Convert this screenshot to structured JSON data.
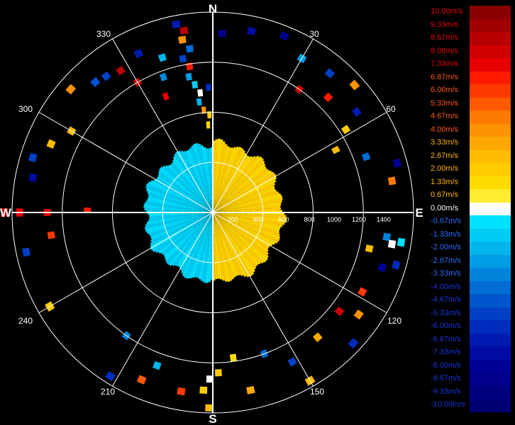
{
  "chart_data": {
    "type": "heatmap",
    "subtype": "polar radial velocity display",
    "cardinals": [
      "N",
      "E",
      "S",
      "W"
    ],
    "azimuth_labels": [
      "30",
      "60",
      "120",
      "150",
      "210",
      "240",
      "300",
      "330"
    ],
    "range_labels": [
      "200",
      "400",
      "600",
      "800",
      "1000",
      "1200",
      "1400"
    ],
    "rmax": 1600,
    "ring_step": 400,
    "spoke_step_deg": 30,
    "legend": {
      "placement": "right",
      "unit": "m/s",
      "entries": [
        {
          "label": "10.00m/s",
          "value": 10.0,
          "color": "#8a0000"
        },
        {
          "label": "9.33m/s",
          "value": 9.33,
          "color": "#a00000"
        },
        {
          "label": "8.67m/s",
          "value": 8.67,
          "color": "#b80000"
        },
        {
          "label": "8.00m/s",
          "value": 8.0,
          "color": "#d00000"
        },
        {
          "label": "7.33m/s",
          "value": 7.33,
          "color": "#e80000"
        },
        {
          "label": "6.87m/s",
          "value": 6.87,
          "color": "#ff1a00"
        },
        {
          "label": "6.00m/s",
          "value": 6.0,
          "color": "#ff3a00"
        },
        {
          "label": "5.33m/s",
          "value": 5.33,
          "color": "#ff5a00"
        },
        {
          "label": "4.67m/s",
          "value": 4.67,
          "color": "#ff7a00"
        },
        {
          "label": "4.00m/s",
          "value": 4.0,
          "color": "#ff9200"
        },
        {
          "label": "3.33m/s",
          "value": 3.33,
          "color": "#ffa800"
        },
        {
          "label": "2.67m/s",
          "value": 2.67,
          "color": "#ffbc00"
        },
        {
          "label": "2.00m/s",
          "value": 2.0,
          "color": "#ffcc00"
        },
        {
          "label": "1.33m/s",
          "value": 1.33,
          "color": "#ffdc00"
        },
        {
          "label": "0.67m/s",
          "value": 0.67,
          "color": "#ffec30"
        },
        {
          "label": "0.00m/s",
          "value": 0.0,
          "color": "#ffffff"
        },
        {
          "label": "-0.67m/s",
          "value": -0.67,
          "color": "#00e0ff"
        },
        {
          "label": "-1.33m/s",
          "value": -1.33,
          "color": "#00ccf4"
        },
        {
          "label": "-2.00m/s",
          "value": -2.0,
          "color": "#00b4ec"
        },
        {
          "label": "-2.67m/s",
          "value": -2.67,
          "color": "#009ce4"
        },
        {
          "label": "-3.33m/s",
          "value": -3.33,
          "color": "#0084dc"
        },
        {
          "label": "-4.00m/s",
          "value": -4.0,
          "color": "#006cd4"
        },
        {
          "label": "-4.67m/s",
          "value": -4.67,
          "color": "#0056cc"
        },
        {
          "label": "-5.33m/s",
          "value": -5.33,
          "color": "#0040c4"
        },
        {
          "label": "-6.00m/s",
          "value": -6.0,
          "color": "#002cbc"
        },
        {
          "label": "-6.67m/s",
          "value": -6.67,
          "color": "#001ab0"
        },
        {
          "label": "-7.33m/s",
          "value": -7.33,
          "color": "#000ca4"
        },
        {
          "label": "-8.00m/s",
          "value": -8.0,
          "color": "#000098"
        },
        {
          "label": "-8.67m/s",
          "value": -8.67,
          "color": "#00008c"
        },
        {
          "label": "-9.33m/s",
          "value": -9.33,
          "color": "#000080"
        },
        {
          "label": "-10.00m/s",
          "value": -10.0,
          "color": "#000074"
        }
      ]
    },
    "regions": [
      {
        "az": [
          0,
          180
        ],
        "r": [
          0,
          560
        ],
        "value": 1.8
      },
      {
        "az": [
          180,
          360
        ],
        "r": [
          0,
          540
        ],
        "value": -1.0
      }
    ],
    "cells": [
      {
        "az": 349,
        "r": 1530,
        "value": -6.5
      },
      {
        "az": 351,
        "r": 1470,
        "value": 8.5
      },
      {
        "az": 350,
        "r": 1400,
        "value": 4.0
      },
      {
        "az": 352,
        "r": 1320,
        "value": -4.0
      },
      {
        "az": 349,
        "r": 1250,
        "value": -5.3
      },
      {
        "az": 351,
        "r": 1180,
        "value": 7.0
      },
      {
        "az": 350,
        "r": 1100,
        "value": -3.0
      },
      {
        "az": 352,
        "r": 1030,
        "value": -1.5
      },
      {
        "az": 354,
        "r": 960,
        "value": 0.0
      },
      {
        "az": 353,
        "r": 890,
        "value": -2.0
      },
      {
        "az": 355,
        "r": 820,
        "value": 4.0
      },
      {
        "az": 358,
        "r": 1000,
        "value": -6.0
      },
      {
        "az": 358,
        "r": 780,
        "value": 2.0
      },
      {
        "az": 357,
        "r": 700,
        "value": 1.3
      },
      {
        "az": 3,
        "r": 1430,
        "value": -8.7
      },
      {
        "az": 12,
        "r": 1480,
        "value": -7.3
      },
      {
        "az": 22,
        "r": 1520,
        "value": -8.7
      },
      {
        "az": 30,
        "r": 1420,
        "value": -2.7
      },
      {
        "az": 40,
        "r": 1450,
        "value": -5.3
      },
      {
        "az": 45,
        "r": 1300,
        "value": 6.9
      },
      {
        "az": 48,
        "r": 1520,
        "value": 4.0
      },
      {
        "az": 55,
        "r": 1400,
        "value": -6.7
      },
      {
        "az": 35,
        "r": 1200,
        "value": 8.0
      },
      {
        "az": 58,
        "r": 1250,
        "value": 2.0
      },
      {
        "az": 63,
        "r": 1100,
        "value": 2.7
      },
      {
        "az": 70,
        "r": 1300,
        "value": -4.0
      },
      {
        "az": 75,
        "r": 1520,
        "value": -8.0
      },
      {
        "az": 80,
        "r": 1450,
        "value": 4.7
      },
      {
        "az": 98,
        "r": 1400,
        "value": -3.3
      },
      {
        "az": 100,
        "r": 1450,
        "value": 0.0
      },
      {
        "az": 99,
        "r": 1520,
        "value": -0.67
      },
      {
        "az": 103,
        "r": 1280,
        "value": 2.7
      },
      {
        "az": 106,
        "r": 1520,
        "value": -6.0
      },
      {
        "az": 108,
        "r": 1420,
        "value": -8.0
      },
      {
        "az": 118,
        "r": 1350,
        "value": 6.0
      },
      {
        "az": 125,
        "r": 1420,
        "value": 4.0
      },
      {
        "az": 128,
        "r": 1280,
        "value": 8.0
      },
      {
        "az": 133,
        "r": 1530,
        "value": -6.0
      },
      {
        "az": 140,
        "r": 1300,
        "value": 3.3
      },
      {
        "az": 150,
        "r": 1550,
        "value": 2.7
      },
      {
        "az": 152,
        "r": 1350,
        "value": -5.3
      },
      {
        "az": 160,
        "r": 1200,
        "value": -4.0
      },
      {
        "az": 168,
        "r": 1450,
        "value": 3.3
      },
      {
        "az": 172,
        "r": 1170,
        "value": 1.3
      },
      {
        "az": 178,
        "r": 1280,
        "value": 2.0
      },
      {
        "az": 181,
        "r": 1330,
        "value": 0.0
      },
      {
        "az": 183,
        "r": 1420,
        "value": 2.0
      },
      {
        "az": 181,
        "r": 1560,
        "value": 2.7
      },
      {
        "az": 190,
        "r": 1450,
        "value": 6.0
      },
      {
        "az": 200,
        "r": 1300,
        "value": -2.0
      },
      {
        "az": 203,
        "r": 1450,
        "value": 5.3
      },
      {
        "az": 212,
        "r": 1540,
        "value": -6.0
      },
      {
        "az": 215,
        "r": 1200,
        "value": -3.3
      },
      {
        "az": 240,
        "r": 1500,
        "value": 2.0
      },
      {
        "az": 258,
        "r": 1520,
        "value": -5.3
      },
      {
        "az": 262,
        "r": 1300,
        "value": 6.0
      },
      {
        "az": 270,
        "r": 1660,
        "value": 8.7
      },
      {
        "az": 270,
        "r": 1540,
        "value": 7.3
      },
      {
        "az": 270,
        "r": 1320,
        "value": 7.3
      },
      {
        "az": 271,
        "r": 1000,
        "value": 6.9
      },
      {
        "az": 281,
        "r": 1460,
        "value": -7.3
      },
      {
        "az": 287,
        "r": 1500,
        "value": -5.3
      },
      {
        "az": 293,
        "r": 1400,
        "value": 2.7
      },
      {
        "az": 300,
        "r": 1300,
        "value": 2.7
      },
      {
        "az": 311,
        "r": 1500,
        "value": 4.0
      },
      {
        "az": 318,
        "r": 1400,
        "value": -4.7
      },
      {
        "az": 322,
        "r": 1380,
        "value": -5.3
      },
      {
        "az": 327,
        "r": 1350,
        "value": 8.7
      },
      {
        "az": 330,
        "r": 1200,
        "value": 8.0
      },
      {
        "az": 335,
        "r": 1400,
        "value": -6.7
      },
      {
        "az": 340,
        "r": 1150,
        "value": -3.3
      },
      {
        "az": 338,
        "r": 1000,
        "value": 7.3
      },
      {
        "az": 342,
        "r": 1300,
        "value": -2.0
      }
    ]
  }
}
